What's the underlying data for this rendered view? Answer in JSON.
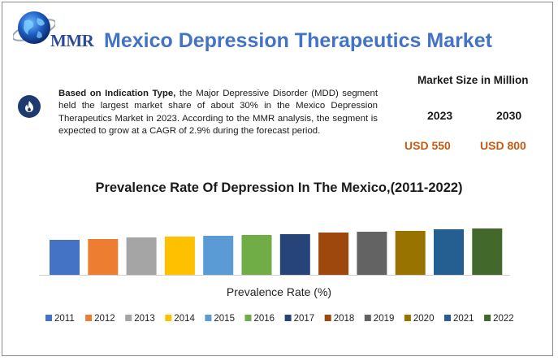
{
  "header": {
    "logo_text": "MMR",
    "title": "Mexico Depression Therapeutics Market"
  },
  "info": {
    "bold_lead": "Based on Indication Type,",
    "body": " the Major Depressive Disorder (MDD) segment held the largest market share of about 30% in the Mexico Depression Therapeutics Market in 2023. According to the MMR analysis, the segment is expected to grow at a CAGR of 2.9% during the forecast period.",
    "icon": "flame-icon"
  },
  "market_size": {
    "title": "Market Size in Million",
    "year_a": "2023",
    "value_a": "USD 550",
    "year_b": "2030",
    "value_b": "USD 800",
    "value_color": "#c55a11"
  },
  "chart_data": {
    "type": "bar",
    "title": "Prevalence Rate Of Depression In The Mexico,(2011-2022)",
    "xlabel": "Prevalence Rate (%)",
    "ylabel": "",
    "legend_position": "bottom",
    "grid": false,
    "ylim": [
      0,
      1
    ],
    "categories": [
      "2011",
      "2012",
      "2013",
      "2014",
      "2015",
      "2016",
      "2017",
      "2018",
      "2019",
      "2020",
      "2021",
      "2022"
    ],
    "values": [
      0.43,
      0.44,
      0.46,
      0.47,
      0.48,
      0.49,
      0.5,
      0.52,
      0.53,
      0.54,
      0.56,
      0.57
    ],
    "colors": [
      "#4472c4",
      "#ed7d31",
      "#a5a5a5",
      "#ffc000",
      "#5b9bd5",
      "#70ad47",
      "#264478",
      "#9e480e",
      "#636363",
      "#997300",
      "#255e91",
      "#43682b"
    ]
  }
}
